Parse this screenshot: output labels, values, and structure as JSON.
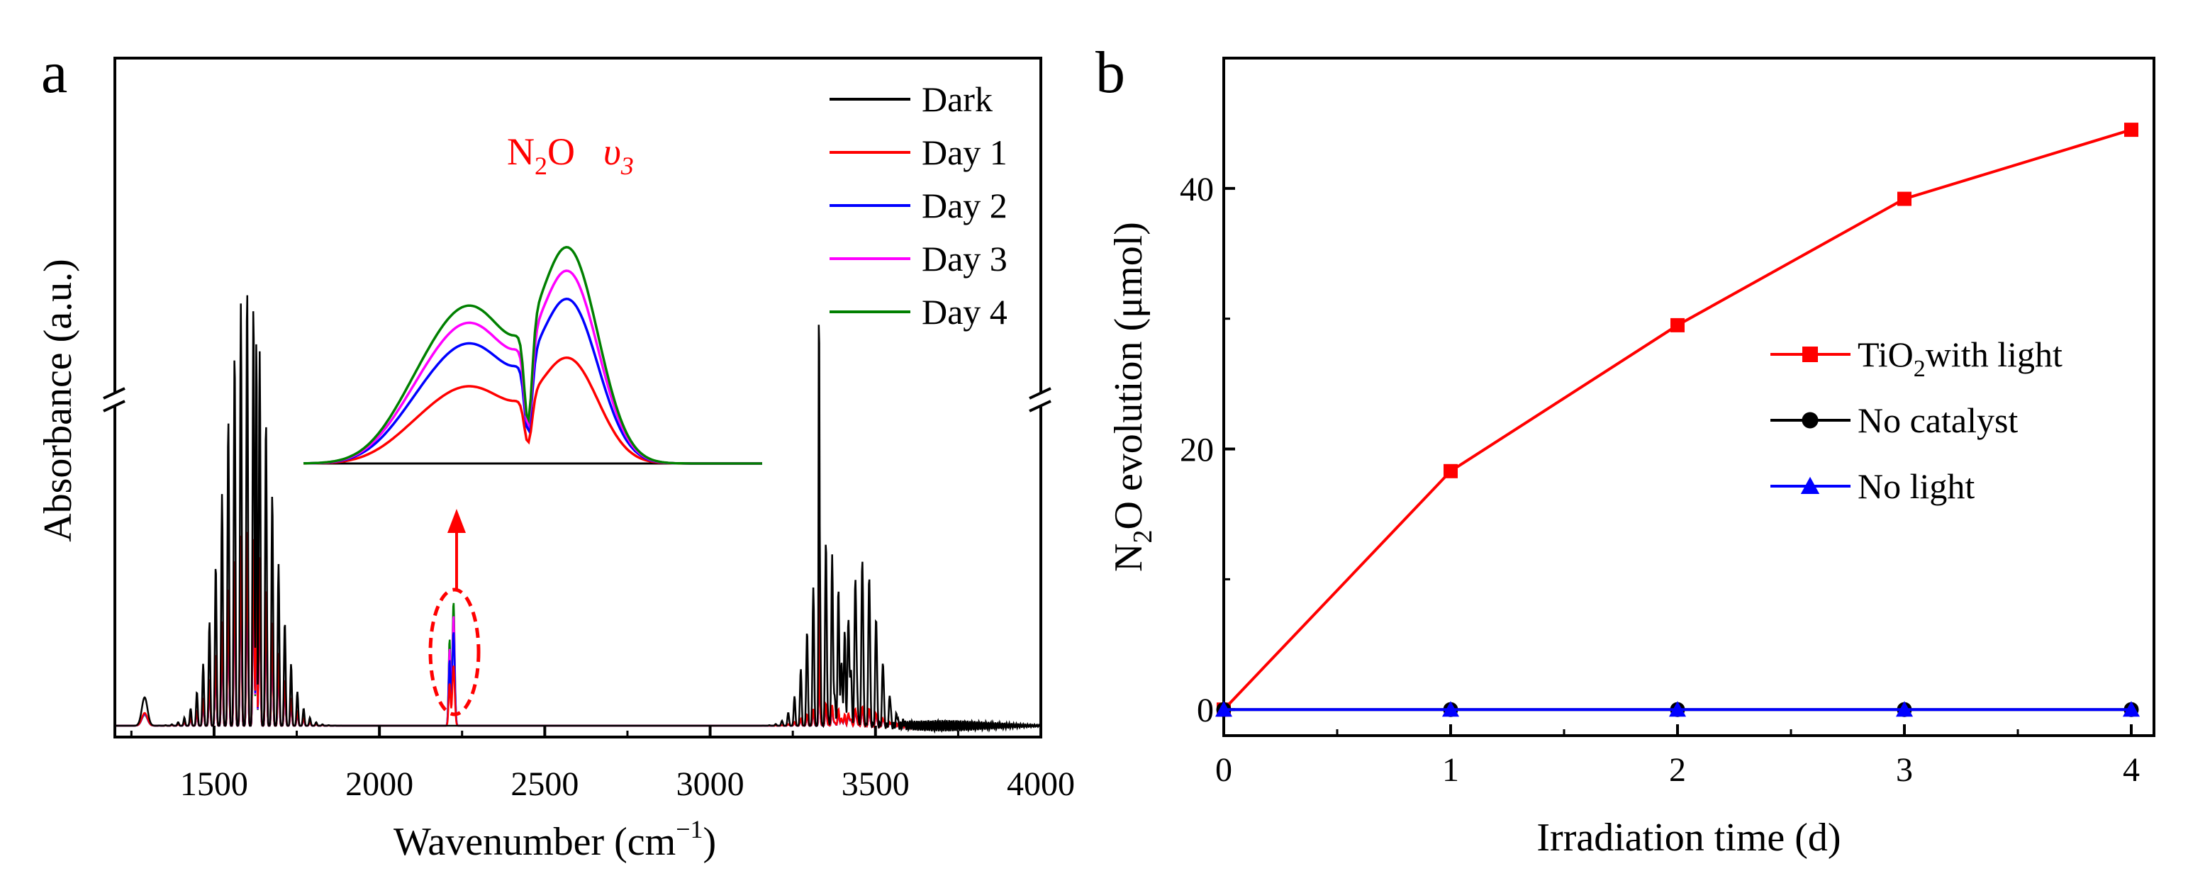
{
  "figure": {
    "panel_a_letter": "a",
    "panel_b_letter": "b"
  },
  "chart_data": [
    {
      "type": "line",
      "title": "",
      "xlabel_main": "Wavenumber (cm",
      "xlabel_sup": "−1",
      "xlabel_end": ")",
      "ylabel": "Absorbance (a.u.)",
      "xlim": [
        1200,
        4000
      ],
      "y_broken": true,
      "x_ticks": [
        "1500",
        "2000",
        "2500",
        "3000",
        "3500",
        "4000"
      ],
      "inset_label_main": "N",
      "inset_label_sub": "2",
      "inset_label_mid": "O",
      "inset_label_mode": "υ",
      "inset_label_mode_sub": "3",
      "legend_position": "top-right",
      "series": [
        {
          "name": "Dark",
          "color": "#000000",
          "scale": 1.0,
          "inset_peak": 0.0
        },
        {
          "name": "Day 1",
          "color": "#ff0000",
          "scale": 0.45,
          "inset_peak": 0.45
        },
        {
          "name": "Day 2",
          "color": "#0000ff",
          "scale": 0.42,
          "inset_peak": 0.7
        },
        {
          "name": "Day 3",
          "color": "#ff00ff",
          "scale": 0.4,
          "inset_peak": 0.82
        },
        {
          "name": "Day 4",
          "color": "#008000",
          "scale": 0.38,
          "inset_peak": 0.92
        }
      ]
    },
    {
      "type": "line",
      "title": "",
      "xlabel": "Irradiation time (d)",
      "ylabel_main": "N",
      "ylabel_sub": "2",
      "ylabel_end": "O evolution (μmol)",
      "xlim": [
        0,
        4.1
      ],
      "ylim": [
        -2,
        50
      ],
      "x_ticks": [
        "0",
        "1",
        "2",
        "3",
        "4"
      ],
      "y_ticks": [
        "0",
        "20",
        "40"
      ],
      "legend_position": "center-right",
      "series": [
        {
          "name": "TiO2 with light",
          "label_main": "TiO",
          "label_sub": "2",
          "label_end": "with light",
          "color": "#ff0000",
          "marker": "square",
          "x": [
            0,
            1,
            2,
            3,
            4
          ],
          "y": [
            0,
            18.3,
            29.5,
            39.2,
            44.5
          ]
        },
        {
          "name": "No catalyst",
          "label_main": "No catalyst",
          "color": "#000000",
          "marker": "circle",
          "x": [
            0,
            1,
            2,
            3,
            4
          ],
          "y": [
            0,
            0,
            0,
            0,
            0
          ]
        },
        {
          "name": "No light",
          "label_main": "No light",
          "color": "#0000ff",
          "marker": "triangle",
          "x": [
            0,
            1,
            2,
            3,
            4
          ],
          "y": [
            0,
            0,
            0,
            0,
            0
          ]
        }
      ]
    }
  ]
}
